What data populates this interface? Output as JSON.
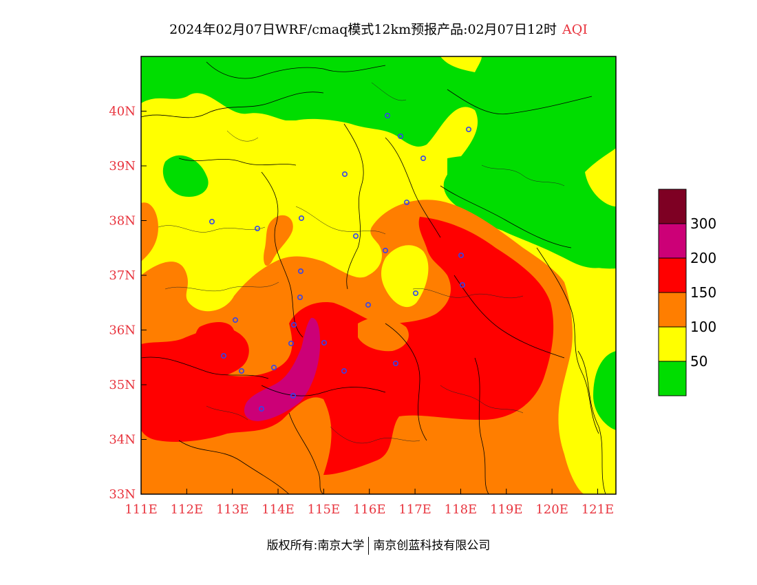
{
  "title": {
    "main": "2024年02月07日WRF/cmaq模式12km预报产品:02月07日12时",
    "variable": "AQI"
  },
  "map": {
    "lon_range": [
      111,
      121.4
    ],
    "lat_range": [
      33,
      41
    ],
    "lon_ticks": [
      "111E",
      "112E",
      "113E",
      "114E",
      "115E",
      "116E",
      "117E",
      "118E",
      "119E",
      "120E",
      "121E"
    ],
    "lat_ticks": [
      "33N",
      "34N",
      "35N",
      "36N",
      "37N",
      "38N",
      "39N",
      "40N"
    ],
    "tick_color": "#e8343e",
    "city_marker_color": "#3344ee"
  },
  "legend": {
    "bins": [
      {
        "label": "",
        "color": "#00dd00"
      },
      {
        "label": "50",
        "color": "#ffff00"
      },
      {
        "label": "100",
        "color": "#ff7e00"
      },
      {
        "label": "150",
        "color": "#ff0000"
      },
      {
        "label": "200",
        "color": "#cc0077"
      },
      {
        "label": "300",
        "color": "#7e0023"
      }
    ]
  },
  "footer": {
    "left": "版权所有:南京大学",
    "right": "南京创蓝科技有限公司"
  }
}
